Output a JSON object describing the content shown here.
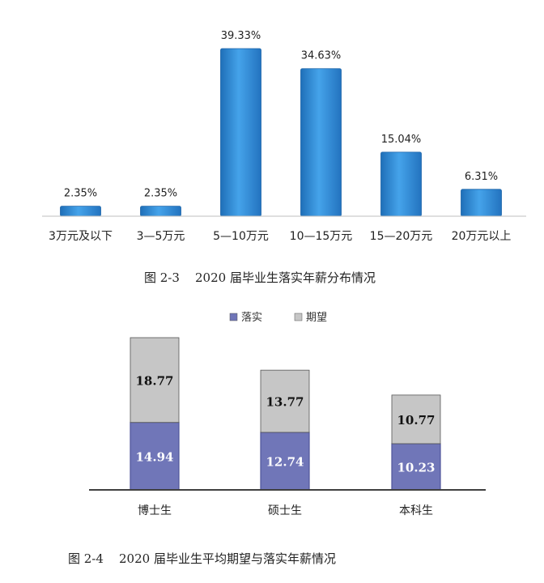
{
  "chart_data": [
    {
      "type": "bar",
      "categories": [
        "3万元及以下",
        "3—5万元",
        "5—10万元",
        "10—15万元",
        "15—20万元",
        "20万元以上"
      ],
      "values": [
        2.35,
        2.35,
        39.33,
        34.63,
        15.04,
        6.31
      ],
      "data_labels": [
        "2.35%",
        "2.35%",
        "39.33%",
        "34.63%",
        "15.04%",
        "6.31%"
      ],
      "unit": "%",
      "ylim": [
        0,
        40
      ],
      "grid": false,
      "legend": "none",
      "color": "#2f8fd6",
      "caption": "图 2-3    2020 届毕业生落实年薪分布情况"
    },
    {
      "type": "bar",
      "stacked": true,
      "categories": [
        "博士生",
        "硕士生",
        "本科生"
      ],
      "series": [
        {
          "name": "落实",
          "values": [
            14.94,
            12.74,
            10.23
          ],
          "color": "#7076b8"
        },
        {
          "name": "期望",
          "values": [
            18.77,
            13.77,
            10.77
          ],
          "color": "#c6c6c6"
        }
      ],
      "ylim": [
        0,
        36
      ],
      "grid": false,
      "legend": "top-center",
      "caption": "图 2-4    2020 届毕业生平均期望与落实年薪情况"
    }
  ]
}
